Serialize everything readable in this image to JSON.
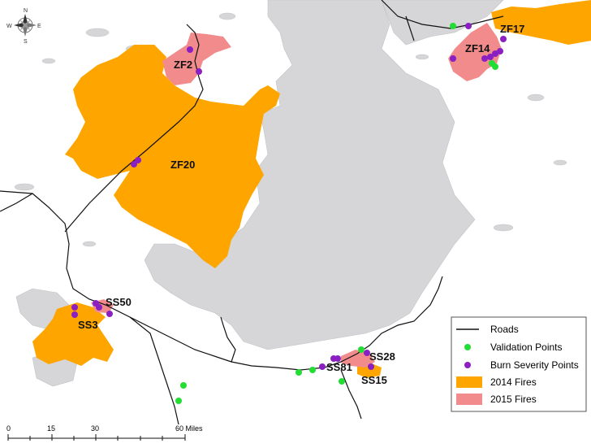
{
  "legend": {
    "roads": "Roads",
    "validation": "Validation Points",
    "burn": "Burn Severity Points",
    "fires2014": "2014 Fires",
    "fires2015": "2015 Fires"
  },
  "fire_labels": {
    "zf2": "ZF2",
    "zf20": "ZF20",
    "zf17": "ZF17",
    "zf14": "ZF14",
    "ss50": "SS50",
    "ss3": "SS3",
    "ss28": "SS28",
    "ss81": "SS81",
    "ss15": "SS15"
  },
  "scale_bar": {
    "t0": "0",
    "t15": "15",
    "t30": "30",
    "t60": "60 Miles"
  },
  "compass": {
    "n": "N",
    "e": "E",
    "s": "S",
    "w": "W"
  },
  "colors": {
    "land": "#ffffff",
    "lake": "#d6d6d8",
    "lake_outline": "#bfc0c2",
    "fire2014": "#ffa500",
    "fire2015": "#f28c8c",
    "validation": "#22dd33",
    "burn": "#8a1fc2",
    "road": "#111111"
  }
}
